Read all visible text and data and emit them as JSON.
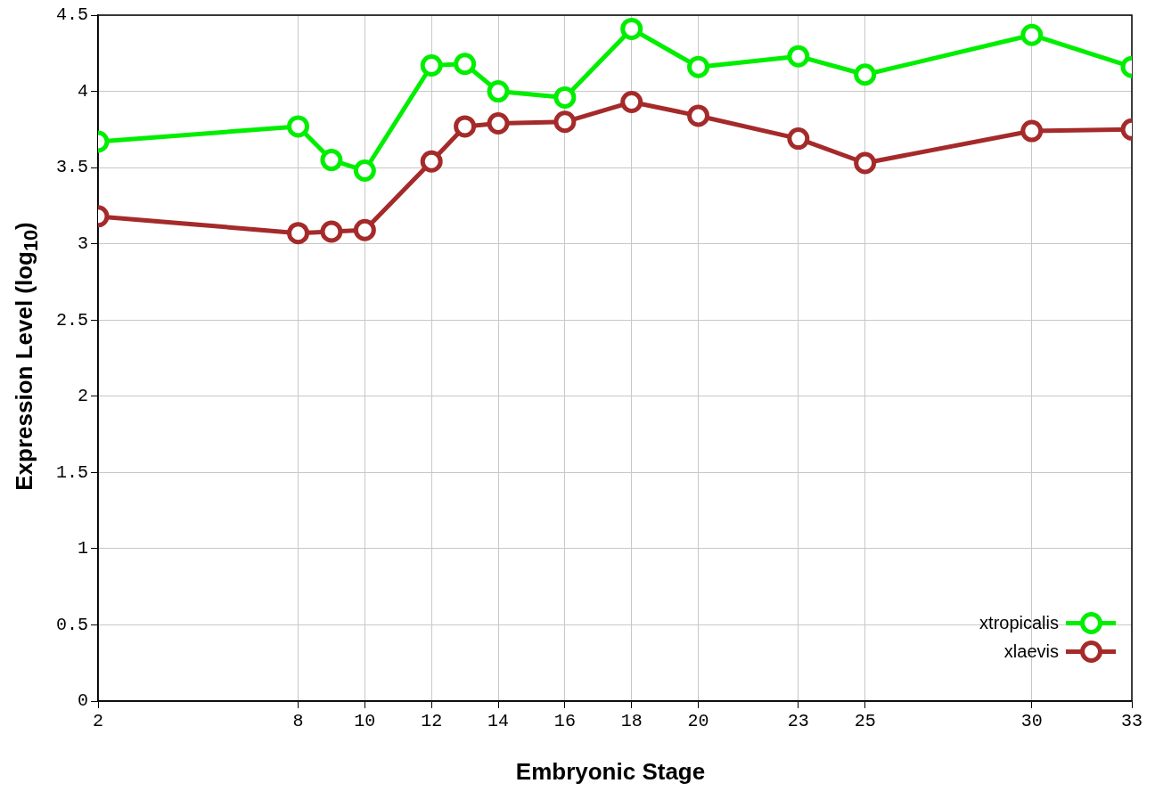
{
  "chart_data": {
    "type": "line",
    "xlabel": "Embryonic Stage",
    "ylabel": "Expression Level (log$_{10}$)",
    "x": [
      2,
      8,
      9,
      10,
      12,
      13,
      14,
      16,
      18,
      20,
      23,
      25,
      30,
      33
    ],
    "series": [
      {
        "name": "xtropicalis",
        "color": "#00ee00",
        "values": [
          3.67,
          3.77,
          3.55,
          3.48,
          4.17,
          4.18,
          4.0,
          3.96,
          4.41,
          4.16,
          4.23,
          4.11,
          4.37,
          4.16
        ]
      },
      {
        "name": "xlaevis",
        "color": "#a52a2a",
        "values": [
          3.18,
          3.07,
          3.08,
          3.09,
          3.54,
          3.77,
          3.79,
          3.8,
          3.93,
          3.84,
          3.69,
          3.53,
          3.74,
          3.75
        ]
      }
    ],
    "xlim": [
      2,
      33
    ],
    "xticks": [
      2,
      8,
      10,
      12,
      14,
      16,
      18,
      20,
      23,
      25,
      30,
      33
    ],
    "ylim": [
      0,
      4.5
    ],
    "yticks": [
      0,
      0.5,
      1,
      1.5,
      2,
      2.5,
      3,
      3.5,
      4,
      4.5
    ],
    "grid": true,
    "legend": "bottom right",
    "marker": "circle",
    "line_style": "solid"
  }
}
